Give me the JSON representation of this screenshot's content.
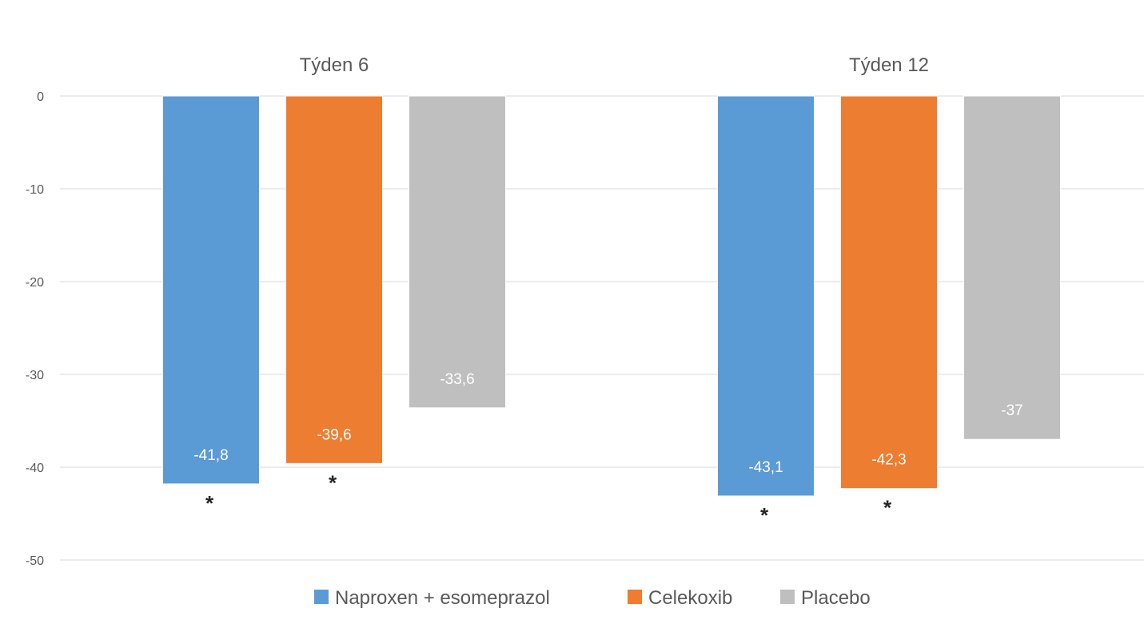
{
  "chart_data": {
    "type": "bar",
    "categories": [
      "Týden 6",
      "Týden 12"
    ],
    "series": [
      {
        "name": "Naproxen + esomeprazol",
        "color": "#5b9bd5",
        "values": [
          -41.8,
          -43.1
        ],
        "labels": [
          "-41,8",
          "-43,1"
        ],
        "significant": [
          true,
          true
        ]
      },
      {
        "name": "Celekoxib",
        "color": "#ed7d31",
        "values": [
          -39.6,
          -42.3
        ],
        "labels": [
          "-39,6",
          "-42,3"
        ],
        "significant": [
          true,
          true
        ]
      },
      {
        "name": "Placebo",
        "color": "#bfbfbf",
        "values": [
          -33.6,
          -37
        ],
        "labels": [
          "-33,6",
          "-37"
        ],
        "significant": [
          false,
          false
        ]
      }
    ],
    "yticks": [
      "0",
      "-10",
      "-20",
      "-30",
      "-40",
      "-50"
    ],
    "yticks_values": [
      0,
      -10,
      -20,
      -30,
      -40,
      -50
    ],
    "ylim": [
      -50,
      0
    ],
    "significance_marker": "*",
    "grid": true,
    "legend_position": "bottom",
    "category_labels_position": "top"
  }
}
